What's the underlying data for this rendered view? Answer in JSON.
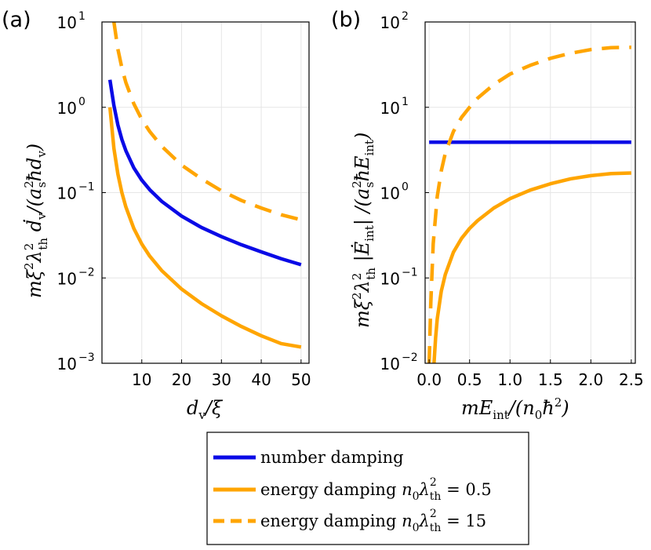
{
  "chart_data": [
    {
      "type": "line",
      "panel_letter": "(a)",
      "xlabel": "d_v/ξ",
      "ylabel": "mξ²λ²_th ḋ_v/(a²_s ħ d_v)",
      "xscale": "linear",
      "yscale": "log",
      "xlim": [
        0,
        52
      ],
      "ylim": [
        0.001,
        10
      ],
      "xticks": [
        10,
        20,
        30,
        40,
        50
      ],
      "xtick_labels": [
        "10",
        "20",
        "30",
        "40",
        "50"
      ],
      "yticks": [
        0.001,
        0.01,
        0.1,
        1,
        10
      ],
      "ytick_labels": [
        {
          "base": "10",
          "exp": "−3"
        },
        {
          "base": "10",
          "exp": "−2"
        },
        {
          "base": "10",
          "exp": "−1"
        },
        {
          "base": "10",
          "exp": "0"
        },
        {
          "base": "10",
          "exp": "1"
        }
      ],
      "grid": true,
      "series": [
        {
          "name": "number damping",
          "color": "#0a0ae6",
          "dash": "solid",
          "x": [
            2,
            3,
            4,
            5,
            6,
            8,
            10,
            12,
            15,
            20,
            25,
            30,
            35,
            40,
            45,
            50
          ],
          "y": [
            2.1,
            1.05,
            0.62,
            0.42,
            0.31,
            0.195,
            0.14,
            0.108,
            0.079,
            0.053,
            0.039,
            0.0305,
            0.0245,
            0.0202,
            0.0168,
            0.0143
          ]
        },
        {
          "name": "energy damping n0λ²th = 0.5",
          "color": "#ffa500",
          "dash": "solid",
          "x": [
            2,
            3,
            4,
            5,
            6,
            8,
            10,
            12,
            15,
            20,
            25,
            30,
            35,
            40,
            45,
            50
          ],
          "y": [
            1.0,
            0.33,
            0.165,
            0.1,
            0.068,
            0.038,
            0.025,
            0.018,
            0.0122,
            0.0074,
            0.005,
            0.0036,
            0.0027,
            0.0021,
            0.0017,
            0.00155
          ]
        },
        {
          "name": "energy damping n0λ²th = 15",
          "color": "#ffa500",
          "dash": "dashed",
          "x": [
            3,
            4,
            5,
            6,
            8,
            10,
            12,
            15,
            20,
            25,
            30,
            35,
            40,
            45,
            50
          ],
          "y": [
            10.0,
            4.8,
            2.9,
            1.95,
            1.1,
            0.72,
            0.52,
            0.35,
            0.21,
            0.145,
            0.105,
            0.081,
            0.066,
            0.055,
            0.048
          ]
        }
      ]
    },
    {
      "type": "line",
      "panel_letter": "(b)",
      "xlabel": "mE_int/(n0ħ²)",
      "ylabel": "mξ²λ²_th |Ė_int| /(a²_s ħ E_int)",
      "xscale": "linear",
      "yscale": "log",
      "xlim": [
        -0.05,
        2.55
      ],
      "ylim": [
        0.01,
        100
      ],
      "xticks": [
        0.0,
        0.5,
        1.0,
        1.5,
        2.0,
        2.5
      ],
      "xtick_labels": [
        "0.0",
        "0.5",
        "1.0",
        "1.5",
        "2.0",
        "2.5"
      ],
      "yticks": [
        0.01,
        0.1,
        1,
        10,
        100
      ],
      "ytick_labels": [
        {
          "base": "10",
          "exp": "−2"
        },
        {
          "base": "10",
          "exp": "−1"
        },
        {
          "base": "10",
          "exp": "0"
        },
        {
          "base": "10",
          "exp": "1"
        },
        {
          "base": "10",
          "exp": "2"
        }
      ],
      "grid": true,
      "series": [
        {
          "name": "number damping",
          "color": "#0a0ae6",
          "dash": "solid",
          "x": [
            0.0,
            2.5
          ],
          "y": [
            3.9,
            3.9
          ]
        },
        {
          "name": "energy damping n0λ²th = 0.5",
          "color": "#ffa500",
          "dash": "solid",
          "x": [
            0.06,
            0.08,
            0.1,
            0.15,
            0.2,
            0.3,
            0.4,
            0.5,
            0.6,
            0.8,
            1.0,
            1.25,
            1.5,
            1.75,
            2.0,
            2.25,
            2.5
          ],
          "y": [
            0.01,
            0.02,
            0.033,
            0.07,
            0.11,
            0.2,
            0.29,
            0.38,
            0.47,
            0.66,
            0.85,
            1.07,
            1.27,
            1.45,
            1.58,
            1.67,
            1.7
          ]
        },
        {
          "name": "energy damping n0λ²th = 15",
          "color": "#ffa500",
          "dash": "dashed",
          "x": [
            0.0,
            0.02,
            0.05,
            0.1,
            0.15,
            0.2,
            0.3,
            0.4,
            0.5,
            0.6,
            0.8,
            1.0,
            1.25,
            1.5,
            1.75,
            2.0,
            2.25,
            2.5
          ],
          "y": [
            0.01,
            0.05,
            0.25,
            0.9,
            1.8,
            2.9,
            5.2,
            7.6,
            10,
            12.8,
            18.5,
            24.5,
            31,
            37.5,
            43,
            47.5,
            50,
            50.5
          ]
        }
      ]
    }
  ],
  "legend": {
    "location": "bottom-center",
    "entries": [
      {
        "label": "number damping",
        "color": "#0a0ae6",
        "dash": "solid"
      },
      {
        "label": "energy damping n0λ²th = 0.5",
        "text_main": "energy damping ",
        "text_var": "n",
        "text_sub0": "0",
        "text_lambda": "λ",
        "text_sup": "2",
        "text_sub": "th",
        "text_eq": " = 0.5",
        "color": "#ffa500",
        "dash": "solid"
      },
      {
        "label": "energy damping n0λ²th = 15",
        "text_main": "energy damping ",
        "text_var": "n",
        "text_sub0": "0",
        "text_lambda": "λ",
        "text_sup": "2",
        "text_sub": "th",
        "text_eq": " = 15",
        "color": "#ffa500",
        "dash": "dashed"
      }
    ]
  },
  "axis_text": {
    "a_xlabel_main": "d",
    "a_xlabel_sub": "v",
    "a_xlabel_rest": "/ξ",
    "b_xlabel_main": "mE",
    "b_xlabel_sub": "int",
    "b_xlabel_rest1": "/(n",
    "b_xlabel_sub0": "0",
    "b_xlabel_rest2": "ħ",
    "b_xlabel_sup": "2",
    "b_xlabel_rest3": ")",
    "a_ylabel_p1": "mξ",
    "a_ylabel_sup1": "2",
    "a_ylabel_p2": "λ",
    "a_ylabel_sup2": "2",
    "a_ylabel_sub2": "th",
    "a_ylabel_p3": " ḋ",
    "a_ylabel_sub3": "v",
    "a_ylabel_p4": "/(a",
    "a_ylabel_sup4": "2",
    "a_ylabel_sub4": "s",
    "a_ylabel_p5": "ħd",
    "a_ylabel_sub5": "v",
    "a_ylabel_p6": ")",
    "b_ylabel_p1": "mξ",
    "b_ylabel_sup1": "2",
    "b_ylabel_p2": "λ",
    "b_ylabel_sup2": "2",
    "b_ylabel_sub2": "th",
    "b_ylabel_p3": " |Ė",
    "b_ylabel_sub3": "int",
    "b_ylabel_p4": "| /(a",
    "b_ylabel_sup4": "2",
    "b_ylabel_sub4": "s",
    "b_ylabel_p5": "ħE",
    "b_ylabel_sub5": "int",
    "b_ylabel_p6": ")"
  }
}
